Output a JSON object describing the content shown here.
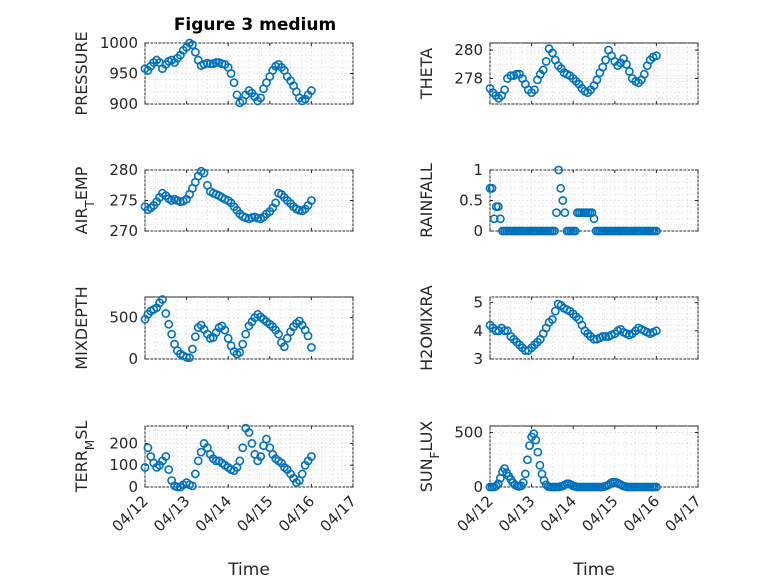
{
  "figure_title": "Figure 3 medium",
  "marker_color": "#0072bd",
  "chart_data": [
    {
      "type": "scatter",
      "title": "Figure 3 medium",
      "ylabel": "PRESSURE",
      "ylabel_parts": [
        {
          "t": "PRESSURE"
        }
      ],
      "xlim": [
        0,
        5
      ],
      "ylim": [
        900,
        1000
      ],
      "yticks": [
        900,
        950,
        1000
      ],
      "xticks": [
        0,
        1,
        2,
        3,
        4,
        5
      ],
      "xticklabels": [
        "04/12",
        "04/13",
        "04/14",
        "04/15",
        "04/16",
        "04/17"
      ],
      "show_xticklabels": false,
      "xlabel": "",
      "grid": "on",
      "x": [
        0.0,
        0.07,
        0.14,
        0.21,
        0.28,
        0.35,
        0.42,
        0.5,
        0.57,
        0.64,
        0.71,
        0.78,
        0.85,
        0.92,
        1.0,
        1.07,
        1.14,
        1.21,
        1.28,
        1.35,
        1.42,
        1.5,
        1.57,
        1.64,
        1.71,
        1.78,
        1.85,
        1.92,
        2.0,
        2.07,
        2.14,
        2.21,
        2.28,
        2.35,
        2.42,
        2.5,
        2.57,
        2.64,
        2.71,
        2.78,
        2.85,
        2.92,
        3.0,
        3.07,
        3.14,
        3.21,
        3.28,
        3.35,
        3.42,
        3.5,
        3.57,
        3.64,
        3.71,
        3.78,
        3.85,
        3.92,
        4.0
      ],
      "y": [
        958,
        955,
        962,
        968,
        972,
        968,
        958,
        965,
        970,
        972,
        968,
        975,
        980,
        988,
        993,
        1000,
        997,
        985,
        972,
        963,
        965,
        967,
        966,
        966,
        968,
        968,
        966,
        965,
        960,
        950,
        935,
        915,
        902,
        905,
        915,
        922,
        918,
        912,
        905,
        910,
        925,
        935,
        945,
        955,
        962,
        965,
        960,
        955,
        945,
        938,
        930,
        920,
        910,
        905,
        908,
        915,
        922
      ]
    },
    {
      "type": "scatter",
      "title": "",
      "ylabel": "THETA",
      "ylabel_parts": [
        {
          "t": "THETA"
        }
      ],
      "xlim": [
        0,
        5
      ],
      "ylim": [
        276.2,
        280.5
      ],
      "yticks": [
        278,
        280
      ],
      "xticks": [
        0,
        1,
        2,
        3,
        4,
        5
      ],
      "xticklabels": [
        "04/12",
        "04/13",
        "04/14",
        "04/15",
        "04/16",
        "04/17"
      ],
      "show_xticklabels": false,
      "xlabel": "",
      "grid": "on",
      "x": [
        0.0,
        0.07,
        0.14,
        0.21,
        0.28,
        0.35,
        0.42,
        0.5,
        0.57,
        0.64,
        0.71,
        0.78,
        0.85,
        0.92,
        1.0,
        1.07,
        1.14,
        1.21,
        1.28,
        1.35,
        1.42,
        1.5,
        1.57,
        1.64,
        1.71,
        1.78,
        1.85,
        1.92,
        2.0,
        2.07,
        2.14,
        2.21,
        2.28,
        2.35,
        2.42,
        2.5,
        2.57,
        2.64,
        2.71,
        2.78,
        2.85,
        2.92,
        3.0,
        3.07,
        3.14,
        3.21,
        3.28,
        3.35,
        3.42,
        3.5,
        3.57,
        3.64,
        3.71,
        3.78,
        3.85,
        3.92,
        4.0
      ],
      "y": [
        277.3,
        277.0,
        276.8,
        276.6,
        276.8,
        277.2,
        278.0,
        278.2,
        278.2,
        278.3,
        278.3,
        278.0,
        277.6,
        277.2,
        277.0,
        277.2,
        277.9,
        278.3,
        278.6,
        279.2,
        280.1,
        279.8,
        279.3,
        278.9,
        278.7,
        278.4,
        278.3,
        278.2,
        278.0,
        277.8,
        277.6,
        277.3,
        277.1,
        277.0,
        277.2,
        277.5,
        277.9,
        278.4,
        278.8,
        279.3,
        280.0,
        279.6,
        279.2,
        278.9,
        279.1,
        279.4,
        279.0,
        278.5,
        278.0,
        277.8,
        277.7,
        277.9,
        278.3,
        278.9,
        279.3,
        279.5,
        279.6
      ]
    },
    {
      "type": "scatter",
      "title": "",
      "ylabel": "AIR_TEMP",
      "ylabel_parts": [
        {
          "t": "AIR"
        },
        {
          "t": "T",
          "sub": true
        },
        {
          "t": "EMP"
        }
      ],
      "xlim": [
        0,
        5
      ],
      "ylim": [
        270,
        280
      ],
      "yticks": [
        270,
        275,
        280
      ],
      "xticks": [
        0,
        1,
        2,
        3,
        4,
        5
      ],
      "xticklabels": [
        "04/12",
        "04/13",
        "04/14",
        "04/15",
        "04/16",
        "04/17"
      ],
      "show_xticklabels": false,
      "xlabel": "",
      "grid": "on",
      "x": [
        0.0,
        0.07,
        0.14,
        0.21,
        0.28,
        0.35,
        0.42,
        0.5,
        0.57,
        0.64,
        0.71,
        0.78,
        0.85,
        0.92,
        1.0,
        1.07,
        1.14,
        1.21,
        1.28,
        1.35,
        1.42,
        1.5,
        1.57,
        1.64,
        1.71,
        1.78,
        1.85,
        1.92,
        2.0,
        2.07,
        2.14,
        2.21,
        2.28,
        2.35,
        2.42,
        2.5,
        2.57,
        2.64,
        2.71,
        2.78,
        2.85,
        2.92,
        3.0,
        3.07,
        3.14,
        3.21,
        3.28,
        3.35,
        3.42,
        3.5,
        3.57,
        3.64,
        3.71,
        3.78,
        3.85,
        3.92,
        4.0
      ],
      "y": [
        274.0,
        273.5,
        273.8,
        274.2,
        274.8,
        275.5,
        276.2,
        275.8,
        275.3,
        275.0,
        275.2,
        275.0,
        274.8,
        274.9,
        275.2,
        276.0,
        277.0,
        278.0,
        279.0,
        279.8,
        279.5,
        277.5,
        276.5,
        276.2,
        276.0,
        275.8,
        275.5,
        275.2,
        275.0,
        274.6,
        274.0,
        273.4,
        272.8,
        272.4,
        272.2,
        272.0,
        272.2,
        272.3,
        272.1,
        272.0,
        272.3,
        272.8,
        273.2,
        273.8,
        274.6,
        276.2,
        276.0,
        275.5,
        275.0,
        274.5,
        274.0,
        273.6,
        273.4,
        273.3,
        273.6,
        274.2,
        275.0
      ]
    },
    {
      "type": "scatter",
      "title": "",
      "ylabel": "RAINFALL",
      "ylabel_parts": [
        {
          "t": "RAINFALL"
        }
      ],
      "xlim": [
        0,
        5
      ],
      "ylim": [
        0,
        1
      ],
      "yticks": [
        0,
        0.5,
        1
      ],
      "xticks": [
        0,
        1,
        2,
        3,
        4,
        5
      ],
      "xticklabels": [
        "04/12",
        "04/13",
        "04/14",
        "04/15",
        "04/16",
        "04/17"
      ],
      "show_xticklabels": false,
      "xlabel": "",
      "grid": "on",
      "x": [
        0.0,
        0.05,
        0.1,
        0.15,
        0.2,
        0.25,
        0.3,
        0.35,
        0.4,
        0.45,
        0.5,
        0.55,
        0.6,
        0.65,
        0.7,
        0.75,
        0.8,
        0.85,
        0.9,
        0.95,
        1.0,
        1.05,
        1.1,
        1.15,
        1.2,
        1.25,
        1.3,
        1.35,
        1.4,
        1.45,
        1.5,
        1.55,
        1.6,
        1.65,
        1.7,
        1.75,
        1.8,
        1.85,
        1.9,
        1.95,
        2.0,
        2.05,
        2.1,
        2.15,
        2.2,
        2.25,
        2.3,
        2.35,
        2.4,
        2.45,
        2.5,
        2.55,
        2.6,
        2.65,
        2.7,
        2.75,
        2.8,
        2.85,
        2.9,
        2.95,
        3.0,
        3.05,
        3.1,
        3.15,
        3.2,
        3.25,
        3.3,
        3.35,
        3.4,
        3.45,
        3.5,
        3.55,
        3.6,
        3.65,
        3.7,
        3.75,
        3.8,
        3.85,
        3.9,
        3.95,
        4.0
      ],
      "y": [
        0.7,
        0.7,
        0.2,
        0.4,
        0.4,
        0.2,
        0,
        0,
        0,
        0,
        0,
        0,
        0,
        0,
        0,
        0,
        0,
        0,
        0,
        0,
        0,
        0,
        0,
        0,
        0,
        0,
        0,
        0,
        0,
        0,
        0,
        0,
        0.3,
        1.0,
        0.7,
        0.5,
        0.3,
        0,
        0,
        0,
        0,
        0,
        0.3,
        0.3,
        0.3,
        0.3,
        0.3,
        0.3,
        0.3,
        0.3,
        0.2,
        0,
        0,
        0,
        0,
        0,
        0,
        0,
        0,
        0,
        0,
        0,
        0,
        0,
        0,
        0,
        0,
        0,
        0,
        0,
        0,
        0,
        0,
        0,
        0,
        0,
        0,
        0,
        0,
        0,
        0
      ]
    },
    {
      "type": "scatter",
      "title": "",
      "ylabel": "MIXDEPTH",
      "ylabel_parts": [
        {
          "t": "MIXDEPTH"
        }
      ],
      "xlim": [
        0,
        5
      ],
      "ylim": [
        0,
        750
      ],
      "yticks": [
        0,
        500
      ],
      "xticks": [
        0,
        1,
        2,
        3,
        4,
        5
      ],
      "xticklabels": [
        "04/12",
        "04/13",
        "04/14",
        "04/15",
        "04/16",
        "04/17"
      ],
      "show_xticklabels": false,
      "xlabel": "",
      "grid": "on",
      "x": [
        0.0,
        0.07,
        0.14,
        0.21,
        0.28,
        0.35,
        0.42,
        0.5,
        0.57,
        0.64,
        0.71,
        0.78,
        0.85,
        0.92,
        1.0,
        1.07,
        1.14,
        1.21,
        1.28,
        1.35,
        1.42,
        1.5,
        1.57,
        1.64,
        1.71,
        1.78,
        1.85,
        1.92,
        2.0,
        2.07,
        2.14,
        2.21,
        2.28,
        2.35,
        2.42,
        2.5,
        2.57,
        2.64,
        2.71,
        2.78,
        2.85,
        2.92,
        3.0,
        3.07,
        3.14,
        3.21,
        3.28,
        3.35,
        3.42,
        3.5,
        3.57,
        3.64,
        3.71,
        3.78,
        3.85,
        3.92,
        4.0
      ],
      "y": [
        480,
        540,
        580,
        600,
        620,
        680,
        720,
        550,
        420,
        300,
        180,
        100,
        60,
        40,
        20,
        15,
        120,
        270,
        380,
        410,
        360,
        300,
        250,
        260,
        320,
        380,
        400,
        350,
        250,
        160,
        90,
        60,
        80,
        180,
        300,
        400,
        450,
        500,
        540,
        510,
        480,
        450,
        420,
        390,
        350,
        300,
        200,
        150,
        250,
        330,
        390,
        430,
        460,
        410,
        350,
        280,
        140
      ]
    },
    {
      "type": "scatter",
      "title": "",
      "ylabel": "H2OMIXRA",
      "ylabel_parts": [
        {
          "t": "H2OMIXRA"
        }
      ],
      "xlim": [
        0,
        5
      ],
      "ylim": [
        3,
        5.2
      ],
      "yticks": [
        3,
        4,
        5
      ],
      "xticks": [
        0,
        1,
        2,
        3,
        4,
        5
      ],
      "xticklabels": [
        "04/12",
        "04/13",
        "04/14",
        "04/15",
        "04/16",
        "04/17"
      ],
      "show_xticklabels": false,
      "xlabel": "",
      "grid": "on",
      "x": [
        0.0,
        0.07,
        0.14,
        0.21,
        0.28,
        0.35,
        0.42,
        0.5,
        0.57,
        0.64,
        0.71,
        0.78,
        0.85,
        0.92,
        1.0,
        1.07,
        1.14,
        1.21,
        1.28,
        1.35,
        1.42,
        1.5,
        1.57,
        1.64,
        1.71,
        1.78,
        1.85,
        1.92,
        2.0,
        2.07,
        2.14,
        2.21,
        2.28,
        2.35,
        2.42,
        2.5,
        2.57,
        2.64,
        2.71,
        2.78,
        2.85,
        2.92,
        3.0,
        3.07,
        3.14,
        3.21,
        3.28,
        3.35,
        3.42,
        3.5,
        3.57,
        3.64,
        3.71,
        3.78,
        3.85,
        3.92,
        4.0
      ],
      "y": [
        4.2,
        4.1,
        4.0,
        4.0,
        4.1,
        4.0,
        4.0,
        3.8,
        3.7,
        3.6,
        3.5,
        3.4,
        3.3,
        3.3,
        3.4,
        3.5,
        3.6,
        3.7,
        3.9,
        4.1,
        4.3,
        4.4,
        4.7,
        4.95,
        4.9,
        4.8,
        4.75,
        4.7,
        4.6,
        4.5,
        4.4,
        4.2,
        4.0,
        3.9,
        3.8,
        3.7,
        3.7,
        3.75,
        3.8,
        3.8,
        3.8,
        3.85,
        3.9,
        4.0,
        4.05,
        3.95,
        3.9,
        3.85,
        3.9,
        4.0,
        4.1,
        4.05,
        4.0,
        3.95,
        3.9,
        3.95,
        4.0
      ]
    },
    {
      "type": "scatter",
      "title": "",
      "ylabel": "TERR_MSL",
      "ylabel_parts": [
        {
          "t": "TERR"
        },
        {
          "t": "M",
          "sub": true
        },
        {
          "t": "SL"
        }
      ],
      "xlim": [
        0,
        5
      ],
      "ylim": [
        0,
        280
      ],
      "yticks": [
        0,
        100,
        200
      ],
      "xticks": [
        0,
        1,
        2,
        3,
        4,
        5
      ],
      "xticklabels": [
        "04/12",
        "04/13",
        "04/14",
        "04/15",
        "04/16",
        "04/17"
      ],
      "show_xticklabels": true,
      "xlabel": "Time",
      "grid": "on",
      "x": [
        0.0,
        0.07,
        0.14,
        0.21,
        0.28,
        0.35,
        0.42,
        0.5,
        0.57,
        0.64,
        0.71,
        0.78,
        0.85,
        0.92,
        1.0,
        1.07,
        1.14,
        1.21,
        1.28,
        1.35,
        1.42,
        1.5,
        1.57,
        1.64,
        1.71,
        1.78,
        1.85,
        1.92,
        2.0,
        2.07,
        2.14,
        2.21,
        2.28,
        2.35,
        2.42,
        2.5,
        2.57,
        2.64,
        2.71,
        2.78,
        2.85,
        2.92,
        3.0,
        3.07,
        3.14,
        3.21,
        3.28,
        3.35,
        3.42,
        3.5,
        3.57,
        3.64,
        3.71,
        3.78,
        3.85,
        3.92,
        4.0
      ],
      "y": [
        90,
        180,
        140,
        110,
        90,
        100,
        120,
        140,
        80,
        30,
        5,
        0,
        0,
        10,
        20,
        10,
        5,
        60,
        120,
        160,
        200,
        180,
        150,
        130,
        120,
        120,
        110,
        100,
        90,
        80,
        75,
        90,
        120,
        180,
        270,
        250,
        200,
        150,
        120,
        140,
        190,
        220,
        180,
        150,
        130,
        120,
        110,
        90,
        80,
        60,
        40,
        20,
        30,
        60,
        100,
        120,
        140
      ]
    },
    {
      "type": "scatter",
      "title": "",
      "ylabel": "SUN_FLUX",
      "ylabel_parts": [
        {
          "t": "SUN"
        },
        {
          "t": "F",
          "sub": true
        },
        {
          "t": "LUX"
        }
      ],
      "xlim": [
        0,
        5
      ],
      "ylim": [
        0,
        560
      ],
      "yticks": [
        0,
        500
      ],
      "xticks": [
        0,
        1,
        2,
        3,
        4,
        5
      ],
      "xticklabels": [
        "04/12",
        "04/13",
        "04/14",
        "04/15",
        "04/16",
        "04/17"
      ],
      "show_xticklabels": true,
      "xlabel": "Time",
      "grid": "on",
      "x": [
        0.0,
        0.05,
        0.1,
        0.15,
        0.2,
        0.25,
        0.3,
        0.35,
        0.4,
        0.45,
        0.5,
        0.55,
        0.6,
        0.65,
        0.7,
        0.75,
        0.8,
        0.85,
        0.9,
        0.95,
        1.0,
        1.05,
        1.1,
        1.15,
        1.2,
        1.25,
        1.3,
        1.35,
        1.4,
        1.45,
        1.5,
        1.55,
        1.6,
        1.65,
        1.7,
        1.75,
        1.8,
        1.85,
        1.9,
        1.95,
        2.0,
        2.05,
        2.1,
        2.15,
        2.2,
        2.25,
        2.3,
        2.35,
        2.4,
        2.45,
        2.5,
        2.55,
        2.6,
        2.65,
        2.7,
        2.75,
        2.8,
        2.85,
        2.9,
        2.95,
        3.0,
        3.05,
        3.1,
        3.15,
        3.2,
        3.25,
        3.3,
        3.35,
        3.4,
        3.45,
        3.5,
        3.55,
        3.6,
        3.65,
        3.7,
        3.75,
        3.8,
        3.85,
        3.9,
        3.95,
        4.0
      ],
      "y": [
        0,
        0,
        0,
        10,
        30,
        80,
        140,
        170,
        130,
        100,
        70,
        40,
        20,
        10,
        5,
        10,
        40,
        120,
        250,
        380,
        460,
        490,
        430,
        320,
        200,
        120,
        60,
        20,
        5,
        0,
        0,
        0,
        0,
        0,
        5,
        10,
        20,
        30,
        30,
        20,
        10,
        5,
        0,
        0,
        0,
        0,
        0,
        0,
        0,
        0,
        0,
        0,
        0,
        0,
        0,
        5,
        10,
        20,
        35,
        45,
        45,
        40,
        30,
        20,
        10,
        5,
        0,
        0,
        0,
        0,
        0,
        0,
        0,
        0,
        0,
        0,
        0,
        0,
        0,
        0,
        0
      ]
    }
  ]
}
